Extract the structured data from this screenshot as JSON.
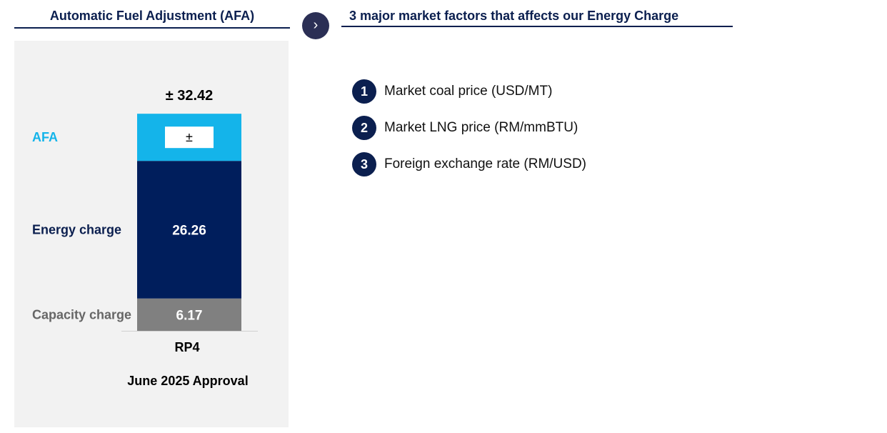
{
  "left_title": "Automatic Fuel Adjustment (AFA)",
  "right_title": "3 major market factors that affects our Energy Charge",
  "arrow_icon": "chevron-right-icon",
  "colors": {
    "afa": "#14b4ea",
    "energy": "#001e5c",
    "capacity": "#808080",
    "navy": "#0b1f4f",
    "panel_bg": "#f2f2f2"
  },
  "chart_data": {
    "type": "bar",
    "stacked": true,
    "categories": [
      "RP4"
    ],
    "series": [
      {
        "name": "Capacity charge",
        "values": [
          6.17
        ],
        "label": "6.17"
      },
      {
        "name": "Energy charge",
        "values": [
          26.26
        ],
        "label": "26.26"
      },
      {
        "name": "AFA",
        "values": [
          9.0
        ],
        "label": "±"
      }
    ],
    "total_label": "± 32.42",
    "xlabel": "June 2025 Approval",
    "ylim": [
      0,
      42
    ]
  },
  "factors": [
    {
      "num": "1",
      "label": "Market coal price (USD/MT)"
    },
    {
      "num": "2",
      "label": "Market LNG price (RM/mmBTU)"
    },
    {
      "num": "3",
      "label": "Foreign exchange rate (RM/USD)"
    }
  ]
}
